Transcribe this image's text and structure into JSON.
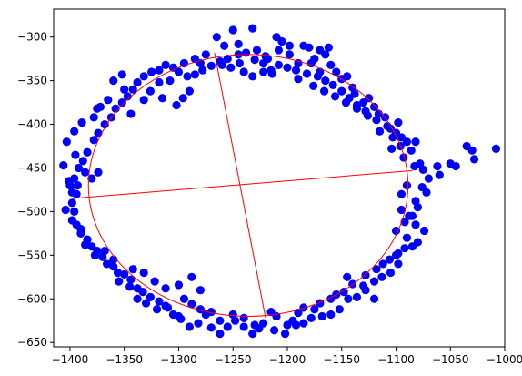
{
  "chart_data": {
    "type": "scatter",
    "xlim": [
      -1415,
      -1000
    ],
    "ylim": [
      -655,
      -268
    ],
    "x_ticks": [
      -1400,
      -1350,
      -1300,
      -1250,
      -1200,
      -1150,
      -1100,
      -1050,
      -1000
    ],
    "x_tick_labels": [
      "−1400",
      "−1350",
      "−1300",
      "−1250",
      "−1200",
      "−1150",
      "−1100",
      "−1050",
      "−1000"
    ],
    "y_ticks": [
      -300,
      -350,
      -400,
      -450,
      -500,
      -550,
      -600,
      -650
    ],
    "y_tick_labels": [
      "−300",
      "−350",
      "−400",
      "−450",
      "−500",
      "−550",
      "−600",
      "−650"
    ],
    "grid": false,
    "point_color": "#0000ff",
    "fit_color": "#ff0000",
    "ellipse": {
      "cx": -1236,
      "cy": -470,
      "rx": 147,
      "ry": 150,
      "rotation_deg": 0
    },
    "axes_lines": [
      {
        "x1": -1267,
        "y1": -318,
        "x2": -1220,
        "y2": -622
      },
      {
        "x1": -1398,
        "y1": -485,
        "x2": -1085,
        "y2": -453
      }
    ],
    "points": [
      [
        -1295,
        -330
      ],
      [
        -1285,
        -325
      ],
      [
        -1275,
        -320
      ],
      [
        -1265,
        -300
      ],
      [
        -1258,
        -310
      ],
      [
        -1250,
        -292
      ],
      [
        -1245,
        -308
      ],
      [
        -1232,
        -290
      ],
      [
        -1228,
        -315
      ],
      [
        -1220,
        -322
      ],
      [
        -1210,
        -300
      ],
      [
        -1205,
        -305
      ],
      [
        -1198,
        -320
      ],
      [
        -1190,
        -330
      ],
      [
        -1185,
        -310
      ],
      [
        -1180,
        -312
      ],
      [
        -1175,
        -325
      ],
      [
        -1170,
        -340
      ],
      [
        -1165,
        -320
      ],
      [
        -1160,
        -332
      ],
      [
        -1155,
        -340
      ],
      [
        -1150,
        -348
      ],
      [
        -1145,
        -345
      ],
      [
        -1140,
        -358
      ],
      [
        -1138,
        -365
      ],
      [
        -1130,
        -375
      ],
      [
        -1125,
        -370
      ],
      [
        -1120,
        -380
      ],
      [
        -1116,
        -388
      ],
      [
        -1110,
        -392
      ],
      [
        -1105,
        -405
      ],
      [
        -1100,
        -410
      ],
      [
        -1095,
        -415
      ],
      [
        -1090,
        -420
      ],
      [
        -1086,
        -430
      ],
      [
        -1082,
        -420
      ],
      [
        -1078,
        -445
      ],
      [
        -1075,
        -452
      ],
      [
        -1070,
        -462
      ],
      [
        -1098,
        -398
      ],
      [
        -1115,
        -408
      ],
      [
        -1104,
        -428
      ],
      [
        -1093,
        -438
      ],
      [
        -1083,
        -448
      ],
      [
        -1062,
        -448
      ],
      [
        -1072,
        -478
      ],
      [
        -1082,
        -488
      ],
      [
        -1090,
        -470
      ],
      [
        -1080,
        -495
      ],
      [
        -1050,
        -445
      ],
      [
        -1045,
        -448
      ],
      [
        -1035,
        -425
      ],
      [
        -1030,
        -430
      ],
      [
        -1028,
        -440
      ],
      [
        -1008,
        -428
      ],
      [
        -1060,
        -458
      ],
      [
        -1076,
        -472
      ],
      [
        -1095,
        -480
      ],
      [
        -1085,
        -505
      ],
      [
        -1100,
        -522
      ],
      [
        -1090,
        -530
      ],
      [
        -1085,
        -540
      ],
      [
        -1092,
        -512
      ],
      [
        -1100,
        -550
      ],
      [
        -1098,
        -560
      ],
      [
        -1105,
        -570
      ],
      [
        -1113,
        -575
      ],
      [
        -1120,
        -580
      ],
      [
        -1130,
        -585
      ],
      [
        -1128,
        -573
      ],
      [
        -1140,
        -583
      ],
      [
        -1145,
        -575
      ],
      [
        -1148,
        -592
      ],
      [
        -1155,
        -595
      ],
      [
        -1160,
        -600
      ],
      [
        -1170,
        -605
      ],
      [
        -1175,
        -612
      ],
      [
        -1185,
        -610
      ],
      [
        -1190,
        -616
      ],
      [
        -1195,
        -625
      ],
      [
        -1200,
        -630
      ],
      [
        -1210,
        -620
      ],
      [
        -1215,
        -615
      ],
      [
        -1222,
        -628
      ],
      [
        -1230,
        -630
      ],
      [
        -1240,
        -632
      ],
      [
        -1248,
        -625
      ],
      [
        -1255,
        -632
      ],
      [
        -1262,
        -640
      ],
      [
        -1270,
        -633
      ],
      [
        -1275,
        -618
      ],
      [
        -1282,
        -628
      ],
      [
        -1290,
        -632
      ],
      [
        -1298,
        -623
      ],
      [
        -1305,
        -618
      ],
      [
        -1312,
        -608
      ],
      [
        -1318,
        -603
      ],
      [
        -1326,
        -598
      ],
      [
        -1333,
        -592
      ],
      [
        -1338,
        -588
      ],
      [
        -1344,
        -578
      ],
      [
        -1350,
        -572
      ],
      [
        -1356,
        -570
      ],
      [
        -1360,
        -563
      ],
      [
        -1366,
        -560
      ],
      [
        -1370,
        -552
      ],
      [
        -1375,
        -545
      ],
      [
        -1380,
        -540
      ],
      [
        -1384,
        -532
      ],
      [
        -1390,
        -525
      ],
      [
        -1394,
        -515
      ],
      [
        -1396,
        -500
      ],
      [
        -1398,
        -490
      ],
      [
        -1394,
        -480
      ],
      [
        -1400,
        -470
      ],
      [
        -1396,
        -462
      ],
      [
        -1392,
        -450
      ],
      [
        -1388,
        -442
      ],
      [
        -1384,
        -432
      ],
      [
        -1378,
        -418
      ],
      [
        -1374,
        -410
      ],
      [
        -1368,
        -400
      ],
      [
        -1362,
        -392
      ],
      [
        -1358,
        -382
      ],
      [
        -1352,
        -375
      ],
      [
        -1347,
        -368
      ],
      [
        -1342,
        -360
      ],
      [
        -1338,
        -352
      ],
      [
        -1332,
        -345
      ],
      [
        -1325,
        -340
      ],
      [
        -1318,
        -338
      ],
      [
        -1312,
        -332
      ],
      [
        -1305,
        -335
      ],
      [
        -1300,
        -340
      ],
      [
        -1292,
        -345
      ],
      [
        -1285,
        -343
      ],
      [
        -1278,
        -338
      ],
      [
        -1270,
        -333
      ],
      [
        -1262,
        -328
      ],
      [
        -1255,
        -325
      ],
      [
        -1245,
        -320
      ],
      [
        -1238,
        -318
      ],
      [
        -1230,
        -326
      ],
      [
        -1222,
        -330
      ],
      [
        -1215,
        -338
      ],
      [
        -1208,
        -332
      ],
      [
        -1200,
        -335
      ],
      [
        -1192,
        -338
      ],
      [
        -1182,
        -342
      ],
      [
        -1172,
        -345
      ],
      [
        -1165,
        -350
      ],
      [
        -1158,
        -355
      ],
      [
        -1150,
        -362
      ],
      [
        -1143,
        -370
      ],
      [
        -1136,
        -378
      ],
      [
        -1128,
        -385
      ],
      [
        -1118,
        -395
      ],
      [
        -1108,
        -402
      ],
      [
        -1103,
        -415
      ],
      [
        -1096,
        -425
      ],
      [
        -1406,
        -447
      ],
      [
        -1403,
        -420
      ],
      [
        -1396,
        -408
      ],
      [
        -1389,
        -398
      ],
      [
        -1378,
        -392
      ],
      [
        -1372,
        -380
      ],
      [
        -1365,
        -372
      ],
      [
        -1375,
        -382
      ],
      [
        -1395,
        -435
      ],
      [
        -1386,
        -455
      ],
      [
        -1374,
        -455
      ],
      [
        -1380,
        -462
      ],
      [
        -1393,
        -470
      ],
      [
        -1401,
        -465
      ],
      [
        -1398,
        -478
      ],
      [
        -1404,
        -498
      ],
      [
        -1398,
        -510
      ],
      [
        -1390,
        -520
      ],
      [
        -1386,
        -538
      ],
      [
        -1377,
        -550
      ],
      [
        -1368,
        -545
      ],
      [
        -1360,
        -555
      ],
      [
        -1355,
        -580
      ],
      [
        -1345,
        -586
      ],
      [
        -1338,
        -600
      ],
      [
        -1330,
        -605
      ],
      [
        -1320,
        -612
      ],
      [
        -1310,
        -610
      ],
      [
        -1300,
        -620
      ],
      [
        -1295,
        -600
      ],
      [
        -1288,
        -606
      ],
      [
        -1280,
        -612
      ],
      [
        -1270,
        -615
      ],
      [
        -1262,
        -625
      ],
      [
        -1250,
        -618
      ],
      [
        -1240,
        -622
      ],
      [
        -1232,
        -640
      ],
      [
        -1226,
        -634
      ],
      [
        -1212,
        -636
      ],
      [
        -1202,
        -640
      ],
      [
        -1192,
        -630
      ],
      [
        -1185,
        -628
      ],
      [
        -1178,
        -622
      ],
      [
        -1168,
        -620
      ],
      [
        -1160,
        -618
      ],
      [
        -1152,
        -612
      ],
      [
        -1144,
        -600
      ],
      [
        -1136,
        -598
      ],
      [
        -1128,
        -590
      ],
      [
        -1120,
        -600
      ],
      [
        -1118,
        -566
      ],
      [
        -1112,
        -560
      ],
      [
        -1106,
        -555
      ],
      [
        -1098,
        -548
      ],
      [
        -1092,
        -542
      ],
      [
        -1080,
        -535
      ],
      [
        -1074,
        -522
      ],
      [
        -1082,
        -515
      ],
      [
        -1088,
        -505
      ],
      [
        -1095,
        -498
      ],
      [
        -1288,
        -575
      ],
      [
        -1280,
        -590
      ],
      [
        -1300,
        -584
      ],
      [
        -1312,
        -588
      ],
      [
        -1322,
        -580
      ],
      [
        -1332,
        -570
      ],
      [
        -1342,
        -566
      ],
      [
        -1296,
        -370
      ],
      [
        -1290,
        -362
      ],
      [
        -1308,
        -350
      ],
      [
        -1318,
        -352
      ],
      [
        -1326,
        -362
      ],
      [
        -1332,
        -372
      ],
      [
        -1344,
        -388
      ],
      [
        -1350,
        -360
      ],
      [
        -1360,
        -350
      ],
      [
        -1352,
        -343
      ],
      [
        -1315,
        -370
      ],
      [
        -1302,
        -378
      ],
      [
        -1240,
        -340
      ],
      [
        -1232,
        -345
      ],
      [
        -1222,
        -340
      ],
      [
        -1214,
        -342
      ],
      [
        -1190,
        -348
      ],
      [
        -1176,
        -356
      ],
      [
        -1166,
        -362
      ],
      [
        -1156,
        -368
      ],
      [
        -1146,
        -375
      ],
      [
        -1136,
        -382
      ],
      [
        -1126,
        -390
      ],
      [
        -1162,
        -312
      ],
      [
        -1170,
        -315
      ],
      [
        -1178,
        -330
      ],
      [
        -1198,
        -310
      ],
      [
        -1208,
        -315
      ],
      [
        -1218,
        -325
      ],
      [
        -1260,
        -332
      ],
      [
        -1252,
        -335
      ],
      [
        -1244,
        -330
      ],
      [
        -1280,
        -330
      ]
    ]
  }
}
